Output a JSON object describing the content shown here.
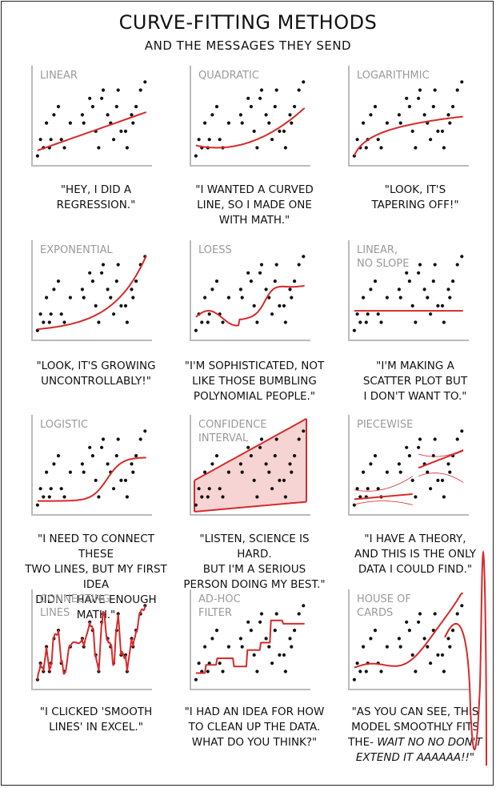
{
  "header": {
    "title": "CURVE-FITTING METHODS",
    "subtitle": "AND THE MESSAGES THEY SEND"
  },
  "colors": {
    "curve": "#d62a2a",
    "band": "#f6d4d4",
    "dots": "#111111",
    "axes": "#bbbbbb",
    "label": "#9a9a9a"
  },
  "chart_data": {
    "type": "scatter",
    "points": [
      [
        2,
        1
      ],
      [
        6,
        3
      ],
      [
        10,
        2
      ],
      [
        14,
        5
      ],
      [
        18,
        2
      ],
      [
        20,
        3
      ],
      [
        24,
        6
      ],
      [
        30,
        7
      ],
      [
        34,
        3
      ],
      [
        38,
        2
      ],
      [
        46,
        5
      ],
      [
        62,
        6
      ],
      [
        64,
        5
      ],
      [
        72,
        8
      ],
      [
        76,
        7
      ],
      [
        80,
        4
      ],
      [
        84,
        2
      ],
      [
        88,
        8
      ],
      [
        90,
        9
      ],
      [
        96,
        6
      ],
      [
        100,
        5
      ],
      [
        104,
        3
      ],
      [
        108,
        7
      ],
      [
        110,
        9
      ],
      [
        114,
        4
      ],
      [
        120,
        4
      ],
      [
        122,
        2
      ],
      [
        128,
        6
      ],
      [
        130,
        5
      ],
      [
        134,
        7
      ],
      [
        140,
        9
      ],
      [
        146,
        10
      ]
    ],
    "panels": [
      {
        "label": "LINEAR",
        "caption": "\"HEY, I DID A\nREGRESSION.\""
      },
      {
        "label": "QUADRATIC",
        "caption": "\"I WANTED A CURVED\nLINE, SO I MADE ONE\nWITH MATH.\""
      },
      {
        "label": "LOGARITHMIC",
        "caption": "\"LOOK, IT'S\nTAPERING OFF!\""
      },
      {
        "label": "EXPONENTIAL",
        "caption": "\"LOOK, IT'S GROWING\nUNCONTROLLABLY!\""
      },
      {
        "label": "LOESS",
        "caption": "\"I'M SOPHISTICATED, NOT\nLIKE THOSE BUMBLING\nPOLYNOMIAL PEOPLE.\""
      },
      {
        "label": "LINEAR,\nNO SLOPE",
        "caption": "\"I'M MAKING A\nSCATTER PLOT BUT\nI DON'T WANT TO.\""
      },
      {
        "label": "LOGISTIC",
        "caption": "\"I NEED TO CONNECT THESE\nTWO LINES, BUT MY FIRST IDEA\nDIDN'T HAVE ENOUGH MATH.\""
      },
      {
        "label": "CONFIDENCE\nINTERVAL",
        "caption": "\"LISTEN, SCIENCE IS HARD.\nBUT I'M A SERIOUS\nPERSON DOING MY BEST.\""
      },
      {
        "label": "PIECEWISE",
        "caption": "\"I HAVE A THEORY,\nAND THIS IS THE ONLY\nDATA I COULD FIND.\""
      },
      {
        "label": "CONNECTING\nLINES",
        "caption": "\"I CLICKED 'SMOOTH\nLINES' IN EXCEL.\""
      },
      {
        "label": "AD-HOC\nFILTER",
        "caption": "\"I HAD AN IDEA FOR HOW\nTO CLEAN UP THE DATA.\nWHAT DO YOU THINK?\""
      },
      {
        "label": "HOUSE OF\nCARDS",
        "caption": "\"AS YOU CAN SEE, THIS\nMODEL SMOOTHLY FITS\nTHE- ",
        "caption_italic": "WAIT NO NO DON'T\nEXTEND IT AAAAAA!!\""
      }
    ]
  }
}
